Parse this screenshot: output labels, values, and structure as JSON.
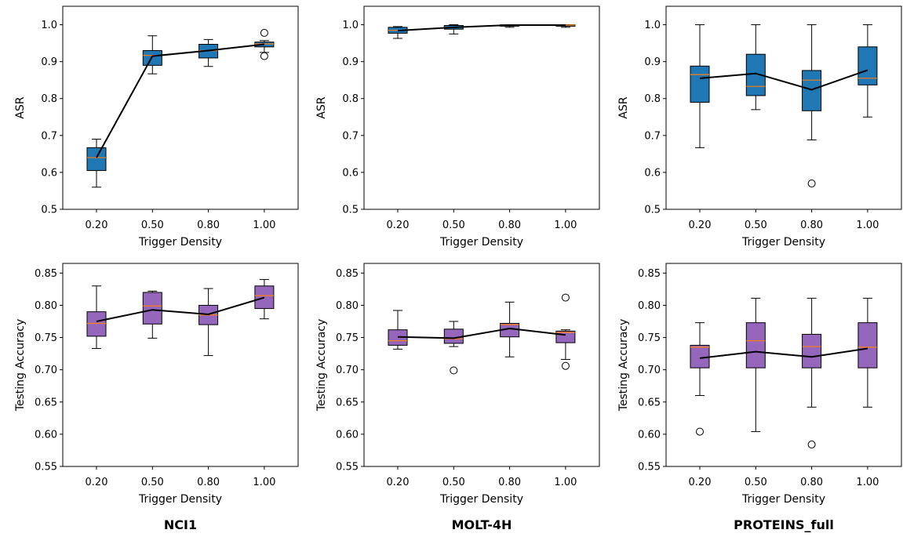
{
  "colors": {
    "asr_box": "#1f77b4",
    "acc_box": "#9467bd",
    "median": "#ff7f0e",
    "mean_line": "#000000"
  },
  "column_titles": [
    "NCI1",
    "MOLT-4H",
    "PROTEINS_full"
  ],
  "chart_data": [
    {
      "type": "box",
      "dataset": "NCI1",
      "metric": "ASR",
      "categories": [
        "0.20",
        "0.50",
        "0.80",
        "1.00"
      ],
      "xlabel": "Trigger Density",
      "ylabel": "ASR",
      "ylim": [
        0.5,
        1.05
      ],
      "yticks": [
        "0.5",
        "0.6",
        "0.7",
        "0.8",
        "0.9",
        "1.0"
      ],
      "boxes": [
        {
          "whislo": 0.56,
          "q1": 0.605,
          "med": 0.64,
          "q3": 0.667,
          "whishi": 0.69,
          "fliers": []
        },
        {
          "whislo": 0.867,
          "q1": 0.89,
          "med": 0.917,
          "q3": 0.93,
          "whishi": 0.97,
          "fliers": []
        },
        {
          "whislo": 0.887,
          "q1": 0.91,
          "med": 0.93,
          "q3": 0.947,
          "whishi": 0.96,
          "fliers": []
        },
        {
          "whislo": 0.925,
          "q1": 0.94,
          "med": 0.948,
          "q3": 0.953,
          "whishi": 0.957,
          "fliers": [
            0.978,
            0.915
          ]
        }
      ],
      "mean": [
        0.64,
        0.915,
        0.93,
        0.947
      ]
    },
    {
      "type": "box",
      "dataset": "MOLT-4H",
      "metric": "ASR",
      "categories": [
        "0.20",
        "0.50",
        "0.80",
        "1.00"
      ],
      "xlabel": "Trigger Density",
      "ylabel": "ASR",
      "ylim": [
        0.5,
        1.05
      ],
      "yticks": [
        "0.5",
        "0.6",
        "0.7",
        "0.8",
        "0.9",
        "1.0"
      ],
      "boxes": [
        {
          "whislo": 0.963,
          "q1": 0.977,
          "med": 0.985,
          "q3": 0.993,
          "whishi": 0.995,
          "fliers": []
        },
        {
          "whislo": 0.975,
          "q1": 0.988,
          "med": 0.993,
          "q3": 0.998,
          "whishi": 1.0,
          "fliers": []
        },
        {
          "whislo": 0.993,
          "q1": 0.996,
          "med": 0.999,
          "q3": 1.0,
          "whishi": 1.0,
          "fliers": []
        },
        {
          "whislo": 0.993,
          "q1": 0.996,
          "med": 0.999,
          "q3": 1.0,
          "whishi": 1.0,
          "fliers": []
        }
      ],
      "mean": [
        0.984,
        0.993,
        0.999,
        0.999
      ]
    },
    {
      "type": "box",
      "dataset": "PROTEINS_full",
      "metric": "ASR",
      "categories": [
        "0.20",
        "0.50",
        "0.80",
        "1.00"
      ],
      "xlabel": "Trigger Density",
      "ylabel": "ASR",
      "ylim": [
        0.5,
        1.05
      ],
      "yticks": [
        "0.5",
        "0.6",
        "0.7",
        "0.8",
        "0.9",
        "1.0"
      ],
      "boxes": [
        {
          "whislo": 0.667,
          "q1": 0.79,
          "med": 0.865,
          "q3": 0.888,
          "whishi": 1.0,
          "fliers": []
        },
        {
          "whislo": 0.77,
          "q1": 0.808,
          "med": 0.833,
          "q3": 0.92,
          "whishi": 1.0,
          "fliers": []
        },
        {
          "whislo": 0.688,
          "q1": 0.767,
          "med": 0.85,
          "q3": 0.876,
          "whishi": 1.0,
          "fliers": [
            0.57
          ]
        },
        {
          "whislo": 0.75,
          "q1": 0.837,
          "med": 0.855,
          "q3": 0.94,
          "whishi": 1.0,
          "fliers": []
        }
      ],
      "mean": [
        0.855,
        0.868,
        0.824,
        0.877
      ]
    },
    {
      "type": "box",
      "dataset": "NCI1",
      "metric": "Testing Accuracy",
      "categories": [
        "0.20",
        "0.50",
        "0.80",
        "1.00"
      ],
      "xlabel": "Trigger Density",
      "ylabel": "Testing Accuracy",
      "ylim": [
        0.55,
        0.865
      ],
      "yticks": [
        "0.55",
        "0.60",
        "0.65",
        "0.70",
        "0.75",
        "0.80",
        "0.85"
      ],
      "boxes": [
        {
          "whislo": 0.733,
          "q1": 0.752,
          "med": 0.772,
          "q3": 0.79,
          "whishi": 0.83,
          "fliers": []
        },
        {
          "whislo": 0.749,
          "q1": 0.771,
          "med": 0.799,
          "q3": 0.82,
          "whishi": 0.822,
          "fliers": []
        },
        {
          "whislo": 0.722,
          "q1": 0.77,
          "med": 0.785,
          "q3": 0.8,
          "whishi": 0.826,
          "fliers": []
        },
        {
          "whislo": 0.779,
          "q1": 0.795,
          "med": 0.815,
          "q3": 0.83,
          "whishi": 0.84,
          "fliers": []
        }
      ],
      "mean": [
        0.775,
        0.793,
        0.786,
        0.812
      ]
    },
    {
      "type": "box",
      "dataset": "MOLT-4H",
      "metric": "Testing Accuracy",
      "categories": [
        "0.20",
        "0.50",
        "0.80",
        "1.00"
      ],
      "xlabel": "Trigger Density",
      "ylabel": "Testing Accuracy",
      "ylim": [
        0.55,
        0.865
      ],
      "yticks": [
        "0.55",
        "0.60",
        "0.65",
        "0.70",
        "0.75",
        "0.80",
        "0.85"
      ],
      "boxes": [
        {
          "whislo": 0.732,
          "q1": 0.738,
          "med": 0.745,
          "q3": 0.762,
          "whishi": 0.792,
          "fliers": []
        },
        {
          "whislo": 0.736,
          "q1": 0.741,
          "med": 0.748,
          "q3": 0.763,
          "whishi": 0.775,
          "fliers": [
            0.699
          ]
        },
        {
          "whislo": 0.72,
          "q1": 0.751,
          "med": 0.77,
          "q3": 0.772,
          "whishi": 0.805,
          "fliers": []
        },
        {
          "whislo": 0.716,
          "q1": 0.742,
          "med": 0.758,
          "q3": 0.76,
          "whishi": 0.762,
          "fliers": [
            0.812,
            0.706
          ]
        }
      ],
      "mean": [
        0.751,
        0.749,
        0.764,
        0.754
      ]
    },
    {
      "type": "box",
      "dataset": "PROTEINS_full",
      "metric": "Testing Accuracy",
      "categories": [
        "0.20",
        "0.50",
        "0.80",
        "1.00"
      ],
      "xlabel": "Trigger Density",
      "ylabel": "Testing Accuracy",
      "ylim": [
        0.55,
        0.865
      ],
      "yticks": [
        "0.55",
        "0.60",
        "0.65",
        "0.70",
        "0.75",
        "0.80",
        "0.85"
      ],
      "boxes": [
        {
          "whislo": 0.66,
          "q1": 0.703,
          "med": 0.735,
          "q3": 0.738,
          "whishi": 0.773,
          "fliers": [
            0.604
          ]
        },
        {
          "whislo": 0.604,
          "q1": 0.703,
          "med": 0.745,
          "q3": 0.773,
          "whishi": 0.811,
          "fliers": []
        },
        {
          "whislo": 0.642,
          "q1": 0.703,
          "med": 0.736,
          "q3": 0.755,
          "whishi": 0.811,
          "fliers": [
            0.584
          ]
        },
        {
          "whislo": 0.642,
          "q1": 0.703,
          "med": 0.735,
          "q3": 0.773,
          "whishi": 0.811,
          "fliers": []
        }
      ],
      "mean": [
        0.718,
        0.728,
        0.72,
        0.733
      ]
    }
  ]
}
